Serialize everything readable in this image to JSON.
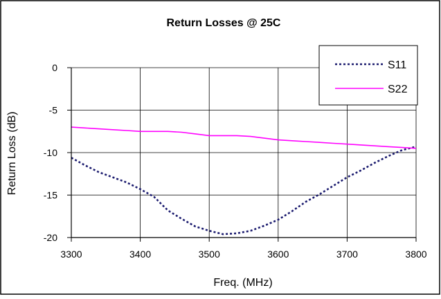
{
  "chart_data": {
    "type": "line",
    "title": "Return Losses @ 25C",
    "xlabel": "Freq. (MHz)",
    "ylabel": "Return Loss (dB)",
    "xlim": [
      3300,
      3800
    ],
    "ylim": [
      -20,
      0
    ],
    "xticks": [
      3300,
      3400,
      3500,
      3600,
      3700,
      3800
    ],
    "yticks": [
      0,
      -5,
      -10,
      -15,
      -20
    ],
    "grid": true,
    "legend_position": "top-right",
    "series": [
      {
        "name": "S11",
        "color": "#1a1a6e",
        "style": "dotted",
        "x": [
          3300,
          3320,
          3340,
          3360,
          3380,
          3400,
          3420,
          3440,
          3460,
          3480,
          3500,
          3520,
          3540,
          3560,
          3580,
          3600,
          3620,
          3640,
          3660,
          3680,
          3700,
          3720,
          3740,
          3760,
          3780,
          3800
        ],
        "y": [
          -10.6,
          -11.5,
          -12.3,
          -12.9,
          -13.5,
          -14.3,
          -15.2,
          -16.8,
          -17.8,
          -18.7,
          -19.2,
          -19.6,
          -19.5,
          -19.2,
          -18.6,
          -17.9,
          -16.9,
          -15.8,
          -14.9,
          -13.9,
          -12.9,
          -12.1,
          -11.2,
          -10.4,
          -9.7,
          -9.3
        ]
      },
      {
        "name": "S22",
        "color": "#ff00ff",
        "style": "solid",
        "x": [
          3300,
          3320,
          3340,
          3360,
          3380,
          3400,
          3420,
          3440,
          3460,
          3480,
          3500,
          3520,
          3540,
          3560,
          3580,
          3600,
          3620,
          3640,
          3660,
          3680,
          3700,
          3720,
          3740,
          3760,
          3780,
          3800
        ],
        "y": [
          -7.0,
          -7.1,
          -7.2,
          -7.3,
          -7.4,
          -7.5,
          -7.5,
          -7.5,
          -7.6,
          -7.8,
          -8.0,
          -8.0,
          -8.0,
          -8.1,
          -8.3,
          -8.5,
          -8.6,
          -8.7,
          -8.8,
          -8.9,
          -9.0,
          -9.1,
          -9.2,
          -9.3,
          -9.4,
          -9.5
        ]
      }
    ]
  }
}
